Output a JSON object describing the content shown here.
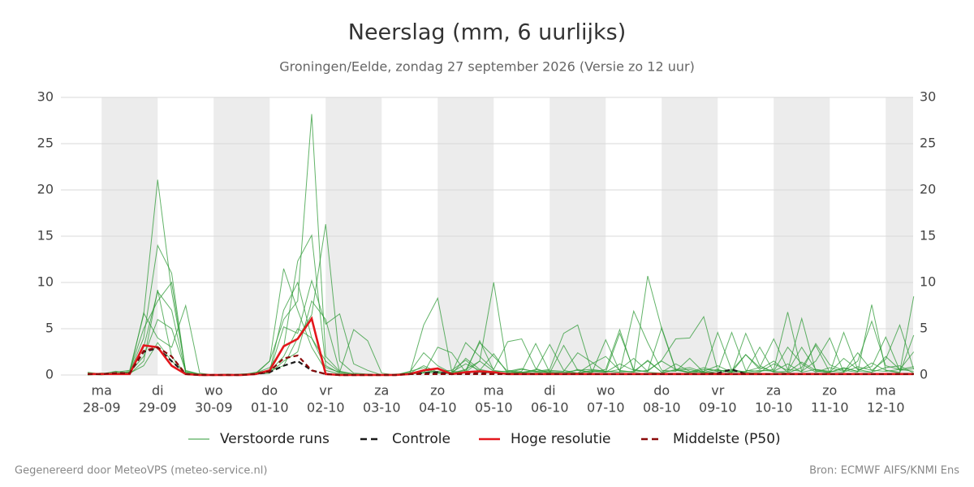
{
  "chart_data": {
    "type": "line",
    "title": "Neerslag (mm, 6 uurlijks)",
    "subtitle": "Groningen/Eelde, zondag 27 september 2026 (Versie zo 12 uur)",
    "footer_left": "Gegenereerd door MeteoVPS (meteo-service.nl)",
    "footer_right": "Bron: ECMWF AIFS/KNMI Ens",
    "categories": [
      null,
      {
        "day": "ma",
        "date": "28-09"
      },
      null,
      null,
      null,
      {
        "day": "di",
        "date": "29-09"
      },
      null,
      null,
      null,
      {
        "day": "wo",
        "date": "30-09"
      },
      null,
      null,
      null,
      {
        "day": "do",
        "date": "01-10"
      },
      null,
      null,
      null,
      {
        "day": "vr",
        "date": "02-10"
      },
      null,
      null,
      null,
      {
        "day": "za",
        "date": "03-10"
      },
      null,
      null,
      null,
      {
        "day": "zo",
        "date": "04-10"
      },
      null,
      null,
      null,
      {
        "day": "ma",
        "date": "05-10"
      },
      null,
      null,
      null,
      {
        "day": "di",
        "date": "06-10"
      },
      null,
      null,
      null,
      {
        "day": "wo",
        "date": "07-10"
      },
      null,
      null,
      null,
      {
        "day": "do",
        "date": "08-10"
      },
      null,
      null,
      null,
      {
        "day": "vr",
        "date": "09-10"
      },
      null,
      null,
      null,
      {
        "day": "za",
        "date": "10-10"
      },
      null,
      null,
      null,
      {
        "day": "zo",
        "date": "11-10"
      },
      null,
      null,
      null,
      {
        "day": "ma",
        "date": "12-10"
      },
      null,
      null
    ],
    "ylim": [
      0,
      30
    ],
    "yticks": [
      0,
      5,
      10,
      15,
      20,
      25,
      30
    ],
    "grid": true,
    "right_axis": true,
    "ensemble": {
      "name": "Verstoorde runs",
      "color": "#2e9a36",
      "runs": [
        [
          0.2,
          0.1,
          0.3,
          0.5,
          6.5,
          21.1,
          9.0,
          0.5,
          0.1,
          0,
          0,
          0,
          0.1,
          0.4,
          2.0,
          5.0,
          4.0,
          1.5,
          0.3,
          0.1,
          0,
          0,
          0,
          0.3,
          2.4,
          1.0,
          0.2,
          0.5,
          3.5,
          2.0,
          0.4,
          0.2,
          0.6,
          0.3,
          0.1,
          0.2,
          1.2,
          2.0,
          0.5,
          0.3,
          0.5,
          1.5,
          0.6,
          0.2,
          0.4,
          1.0,
          0.3,
          2.2,
          0.8,
          0.4,
          3.0,
          1.2,
          0.3,
          0.8,
          0.4,
          1.5,
          5.8,
          1.0,
          0.6,
          2.5
        ],
        [
          0.1,
          0.2,
          0.2,
          0.3,
          4.0,
          14.0,
          11.0,
          0.3,
          0,
          0,
          0,
          0.1,
          0.2,
          1.5,
          6.0,
          8.0,
          28.2,
          2.0,
          0.4,
          0.1,
          0,
          0,
          0.1,
          0.2,
          0.5,
          0.3,
          0.1,
          1.8,
          0.6,
          0.3,
          0.2,
          0.3,
          0.5,
          3.3,
          0.5,
          0.2,
          0.4,
          0.3,
          4.5,
          0.6,
          0.3,
          0.2,
          0.6,
          0.8,
          0.3,
          4.6,
          0.5,
          0.2,
          0.3,
          1.2,
          0.5,
          6.1,
          0.4,
          0.3,
          1.8,
          0.6,
          0.9,
          4.1,
          0.5,
          0.7
        ],
        [
          0,
          0.1,
          0.4,
          0.2,
          3.0,
          9.0,
          7.0,
          0.2,
          0,
          0,
          0,
          0,
          0.1,
          0.5,
          1.0,
          4.0,
          6.5,
          16.3,
          1.5,
          0.2,
          0.1,
          0,
          0,
          0.4,
          0.8,
          0.2,
          0.3,
          1.2,
          0.5,
          2.3,
          0.2,
          0.4,
          3.4,
          0.3,
          0.1,
          0.6,
          0.2,
          3.8,
          0.4,
          0.3,
          1.6,
          0.3,
          0.5,
          0.6,
          0.2,
          0.4,
          0.6,
          0.3,
          3.0,
          0.4,
          0.2,
          0.8,
          3.2,
          0.3,
          0.7,
          0.4,
          1.3,
          0.5,
          0.2,
          4.3
        ],
        [
          0.3,
          0.1,
          0.1,
          0.4,
          5.0,
          8.0,
          10.0,
          0.3,
          0.1,
          0,
          0,
          0,
          0.2,
          0.8,
          3.0,
          12.3,
          15.1,
          1.0,
          0.2,
          0,
          0,
          0,
          0,
          0.1,
          0.3,
          0.2,
          0.2,
          3.5,
          2.0,
          0.6,
          3.6,
          3.9,
          0.7,
          0.2,
          0.3,
          0.5,
          0.6,
          0.4,
          0.3,
          6.9,
          3.5,
          0.5,
          0.4,
          1.8,
          0.3,
          0.2,
          0.5,
          2.2,
          0.6,
          1.5,
          0.3,
          1.4,
          0.5,
          0.2,
          4.6,
          0.6,
          0.3,
          0.8,
          1.0,
          0.2
        ],
        [
          0.1,
          0.2,
          0.1,
          0.2,
          6.7,
          4.0,
          3.0,
          7.5,
          0.2,
          0,
          0,
          0.1,
          0.1,
          1.5,
          11.5,
          7.0,
          3.0,
          0.5,
          0.1,
          0,
          0,
          0,
          0,
          0.2,
          1.0,
          0.3,
          0.2,
          0.6,
          1.5,
          10.0,
          0.5,
          0.3,
          0.4,
          0.6,
          4.5,
          5.4,
          0.4,
          0.3,
          1.2,
          0.5,
          0.4,
          5.1,
          0.6,
          0.3,
          0.8,
          0.4,
          4.6,
          0.5,
          0.4,
          0.6,
          6.8,
          0.4,
          1.5,
          4.0,
          0.3,
          0.9,
          0.5,
          1.7,
          5.4,
          0.6
        ],
        [
          0,
          0.1,
          0.2,
          0.3,
          2.0,
          6.0,
          5.0,
          0.4,
          0.1,
          0,
          0.1,
          0,
          0.3,
          0.4,
          7.0,
          10.0,
          4.0,
          0.8,
          0.3,
          4.9,
          3.7,
          0.2,
          0,
          0.1,
          5.4,
          8.3,
          0.4,
          0.3,
          3.7,
          0.5,
          0.3,
          0.6,
          0.4,
          0.2,
          3.2,
          0.5,
          0.3,
          0.6,
          4.9,
          0.4,
          10.7,
          5.0,
          0.5,
          0.3,
          0.6,
          0.5,
          0.3,
          0.4,
          0.8,
          3.9,
          0.6,
          0.4,
          3.4,
          1.1,
          0.5,
          0.3,
          7.6,
          0.5,
          0.3,
          8.5
        ],
        [
          0.1,
          0,
          0.2,
          0.1,
          1.5,
          9.2,
          2.0,
          0.1,
          0,
          0,
          0,
          0,
          0.1,
          0.3,
          5.2,
          4.5,
          10.2,
          5.5,
          6.6,
          1.2,
          0.5,
          0,
          0,
          0.1,
          0.2,
          3.0,
          2.4,
          0.3,
          1.5,
          0.4,
          0.4,
          0.7,
          0.3,
          0.5,
          0.4,
          2.4,
          1.4,
          0.3,
          0.6,
          1.8,
          0.4,
          1.6,
          3.9,
          4.0,
          6.3,
          0.5,
          0.4,
          0.3,
          0.5,
          0.4,
          1.2,
          0.3,
          0.6,
          0.4,
          0.3,
          2.4,
          0.5,
          0.4,
          0.6,
          0.9
        ],
        [
          0.2,
          0.1,
          0.1,
          0.2,
          1.0,
          3.5,
          1.5,
          0.2,
          0,
          0,
          0,
          0.1,
          0.1,
          0.2,
          1.5,
          2.5,
          8.0,
          6.0,
          0.4,
          0.1,
          0,
          0,
          0,
          0.1,
          0.3,
          0.4,
          0.5,
          1.6,
          0.3,
          0.2,
          0.1,
          0.3,
          0.2,
          0.4,
          0.3,
          0.2,
          0.5,
          0.4,
          0.3,
          0.4,
          1.5,
          0.3,
          1.2,
          0.4,
          0.3,
          0.6,
          0.2,
          4.5,
          1.0,
          0.3,
          0.4,
          3.0,
          0.6,
          0.3,
          0.8,
          0.4,
          0.3,
          2.0,
          0.6,
          0.4
        ]
      ]
    },
    "series": [
      {
        "name": "Controle",
        "color": "#1a1a1a",
        "dash": true,
        "values": [
          0.1,
          0.1,
          0.2,
          0.2,
          2.5,
          2.9,
          1.5,
          0.1,
          0,
          0,
          0,
          0,
          0.1,
          0.3,
          1.0,
          1.5,
          0.5,
          0.1,
          0,
          0,
          0,
          0,
          0,
          0.1,
          0.2,
          0.3,
          0.1,
          0.2,
          0.3,
          0.2,
          0.1,
          0.1,
          0.1,
          0.1,
          0.1,
          0.1,
          0.1,
          0.1,
          0.1,
          0.1,
          0.1,
          0.1,
          0.1,
          0.1,
          0.1,
          0.2,
          0.6,
          0.1,
          0.1,
          0.1,
          0.1,
          0.1,
          0.1,
          0.1,
          0.1,
          0.1,
          0.1,
          0.1,
          0.1,
          0.1
        ]
      },
      {
        "name": "Hoge resolutie",
        "color": "#e3171c",
        "dash": false,
        "values": [
          0.1,
          0.1,
          0.1,
          0.1,
          3.2,
          3.0,
          1.0,
          0.1,
          0,
          0,
          0,
          0,
          0.1,
          0.5,
          3.1,
          3.9,
          6.1,
          0.1,
          0,
          0,
          0,
          0,
          0,
          0.1,
          0.5,
          0.7,
          0.1,
          0.3,
          0.4,
          0.3,
          0.1,
          0.1,
          0.1,
          0.1,
          0.1,
          0.1,
          0.1,
          0.1,
          0.1,
          0.1,
          0.1,
          0.1,
          0.1,
          0.1,
          0.1,
          0.1,
          0.1,
          0.1,
          0.1,
          0.1,
          0.1,
          0.1,
          0.1,
          0.1,
          0.1,
          0.1,
          0.1,
          0.1,
          0.1,
          0.1
        ]
      },
      {
        "name": "Middelste (P50)",
        "color": "#8b0a0a",
        "dash": true,
        "values": [
          0.1,
          0.1,
          0.2,
          0.2,
          2.6,
          3.0,
          2.0,
          0.1,
          0,
          0,
          0,
          0,
          0.1,
          0.4,
          1.8,
          2.1,
          0.5,
          0.1,
          0,
          0,
          0,
          0,
          0,
          0.1,
          0.1,
          0.1,
          0.1,
          0.1,
          0.1,
          0.1,
          0.1,
          0.1,
          0.1,
          0.1,
          0.1,
          0.1,
          0.1,
          0.1,
          0.1,
          0.1,
          0.1,
          0.1,
          0.1,
          0.1,
          0.1,
          0.1,
          0.1,
          0.1,
          0.1,
          0.1,
          0.1,
          0.1,
          0.1,
          0.1,
          0.1,
          0.1,
          0.1,
          0.1,
          0.1,
          0.1
        ]
      }
    ]
  }
}
